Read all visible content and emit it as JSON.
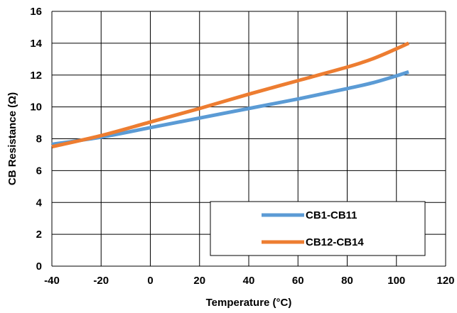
{
  "chart_data": {
    "type": "line",
    "title": "",
    "xlabel": "Temperature (°C)",
    "ylabel": "CB Resistance (Ω)",
    "xlim": [
      -40,
      120
    ],
    "ylim": [
      0,
      16
    ],
    "xticks": [
      -40,
      -20,
      0,
      20,
      40,
      60,
      80,
      100,
      120
    ],
    "yticks": [
      0,
      2,
      4,
      6,
      8,
      10,
      12,
      14,
      16
    ],
    "xtick_labels": [
      "-40",
      "-20",
      "0",
      "20",
      "40",
      "60",
      "80",
      "100",
      "120"
    ],
    "ytick_labels": [
      "0",
      "2",
      "4",
      "6",
      "8",
      "10",
      "12",
      "14",
      "16"
    ],
    "grid": true,
    "legend_position": "bottom-right",
    "series": [
      {
        "name": "CB1-CB11",
        "color": "#5B9BD5",
        "x": [
          -40,
          -20,
          0,
          20,
          40,
          60,
          80,
          90,
          100,
          105
        ],
        "y": [
          7.65,
          8.1,
          8.7,
          9.3,
          9.9,
          10.5,
          11.15,
          11.5,
          11.95,
          12.2
        ]
      },
      {
        "name": "CB12-CB14",
        "color": "#ED7D31",
        "x": [
          -40,
          -20,
          0,
          20,
          40,
          60,
          80,
          90,
          100,
          105
        ],
        "y": [
          7.5,
          8.2,
          9.05,
          9.9,
          10.8,
          11.65,
          12.5,
          13.0,
          13.65,
          14.0
        ]
      }
    ]
  }
}
